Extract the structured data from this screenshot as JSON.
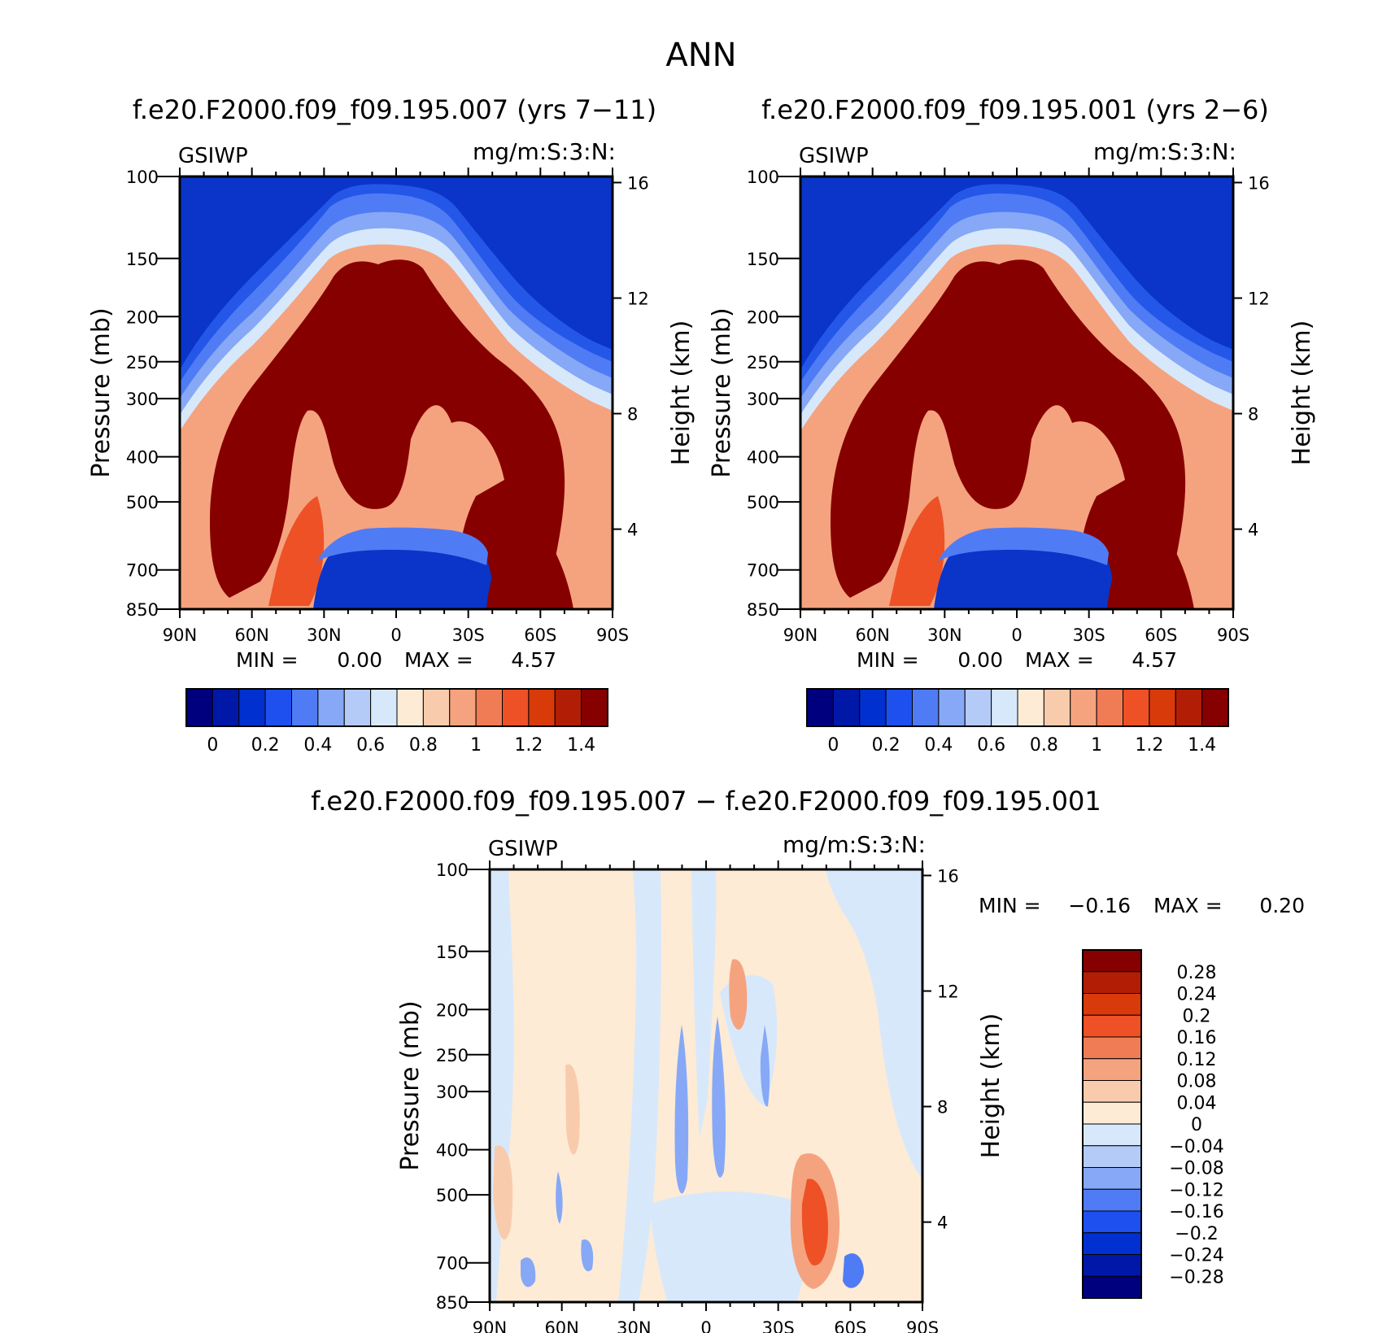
{
  "figure": {
    "title": "ANN"
  },
  "colors": {
    "abs_levels": [
      "#00007f",
      "#0018a8",
      "#0030d0",
      "#1e50f0",
      "#4f7cf5",
      "#86a8f6",
      "#b4cbf8",
      "#d8e8fb",
      "#fdebd6",
      "#f9cbad",
      "#f5a37f",
      "#f07c55",
      "#ee5126",
      "#d83a0a",
      "#b21e05",
      "#870000"
    ],
    "diff_levels": [
      "#870000",
      "#b21e05",
      "#d83a0a",
      "#ee5126",
      "#f07c55",
      "#f5a37f",
      "#f9cbad",
      "#fdebd6",
      "#d8e8fb",
      "#b4cbf8",
      "#86a8f6",
      "#4f7cf5",
      "#1e50f0",
      "#0030d0",
      "#0018a8",
      "#00007f"
    ]
  },
  "chart_data": [
    {
      "type": "heatmap",
      "title": "f.e20.F2000.f09_f09.195.007 (yrs 7−11)",
      "variable": "GSIWP",
      "units": "mg/m:S:3:N:",
      "ylabel": "Pressure (mb)",
      "y2label": "Height (km)",
      "x_ticks": [
        "90N",
        "60N",
        "30N",
        "0",
        "30S",
        "60S",
        "90S"
      ],
      "y_ticks": [
        "100",
        "150",
        "200",
        "250",
        "300",
        "400",
        "500",
        "700",
        "850"
      ],
      "y2_ticks": [
        "16",
        "12",
        "8",
        "4"
      ],
      "min_text": "MIN =",
      "min_value": "0.00",
      "max_text": "MAX =",
      "max_value": "4.57",
      "colorbar_labels": [
        "0",
        "0.2",
        "0.4",
        "0.6",
        "0.8",
        "1",
        "1.2",
        "1.4"
      ],
      "min": 0.0,
      "max": 4.57,
      "ylim": [
        100,
        850
      ]
    },
    {
      "type": "heatmap",
      "title": "f.e20.F2000.f09_f09.195.001 (yrs 2−6)",
      "variable": "GSIWP",
      "units": "mg/m:S:3:N:",
      "ylabel": "Pressure (mb)",
      "y2label": "Height (km)",
      "x_ticks": [
        "90N",
        "60N",
        "30N",
        "0",
        "30S",
        "60S",
        "90S"
      ],
      "y_ticks": [
        "100",
        "150",
        "200",
        "250",
        "300",
        "400",
        "500",
        "700",
        "850"
      ],
      "y2_ticks": [
        "16",
        "12",
        "8",
        "4"
      ],
      "min_text": "MIN =",
      "min_value": "0.00",
      "max_text": "MAX =",
      "max_value": "4.57",
      "colorbar_labels": [
        "0",
        "0.2",
        "0.4",
        "0.6",
        "0.8",
        "1",
        "1.2",
        "1.4"
      ],
      "min": 0.0,
      "max": 4.57,
      "ylim": [
        100,
        850
      ]
    },
    {
      "type": "heatmap",
      "title": "f.e20.F2000.f09_f09.195.007 − f.e20.F2000.f09_f09.195.001",
      "variable": "GSIWP",
      "units": "mg/m:S:3:N:",
      "ylabel": "Pressure (mb)",
      "y2label": "Height (km)",
      "x_ticks": [
        "90N",
        "60N",
        "30N",
        "0",
        "30S",
        "60S",
        "90S"
      ],
      "y_ticks": [
        "100",
        "150",
        "200",
        "250",
        "300",
        "400",
        "500",
        "700",
        "850"
      ],
      "y2_ticks": [
        "16",
        "12",
        "8",
        "4"
      ],
      "min_text": "MIN =",
      "min_value": "−0.16",
      "max_text": "MAX =",
      "max_value": "0.20",
      "colorbar_labels": [
        "0.28",
        "0.24",
        "0.2",
        "0.16",
        "0.12",
        "0.08",
        "0.04",
        "0",
        "−0.04",
        "−0.08",
        "−0.12",
        "−0.16",
        "−0.2",
        "−0.24",
        "−0.28"
      ],
      "min": -0.16,
      "max": 0.2,
      "ylim": [
        100,
        850
      ]
    }
  ]
}
